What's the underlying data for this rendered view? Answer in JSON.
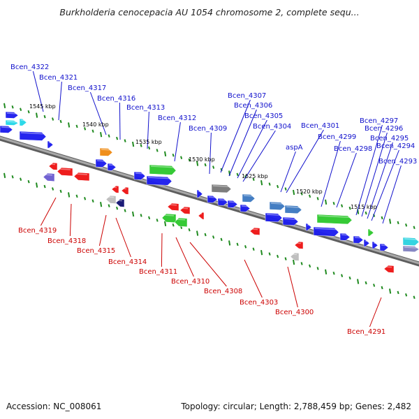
{
  "title": "Burkholderia cenocepacia AU 1054 chromosome 2, complete sequ...",
  "footer": {
    "accession": "Accession: NC_008061",
    "summary": "Topology: circular; Length: 2,788,459 bp; Genes: 2,482"
  },
  "colors": {
    "forward_label": "#1010cc",
    "reverse_label": "#cc0000",
    "backbone": "#8a8a8a",
    "tick": "#1f8a1f",
    "kbp_label": "#000000"
  },
  "scale_labels": [
    "1545 kbp",
    "1540 kbp",
    "1535 kbp",
    "1530 kbp",
    "1525 kbp",
    "1520 kbp",
    "1515 kbp"
  ],
  "forward_genes": [
    "Bcen_4322",
    "Bcen_4321",
    "Bcen_4317",
    "Bcen_4316",
    "Bcen_4313",
    "Bcen_4312",
    "Bcen_4309",
    "Bcen_4307",
    "Bcen_4306",
    "Bcen_4305",
    "Bcen_4304",
    "aspA",
    "Bcen_4301",
    "Bcen_4299",
    "Bcen_4298",
    "Bcen_4297",
    "Bcen_4296",
    "Bcen_4295",
    "Bcen_4294",
    "Bcen_4293"
  ],
  "reverse_genes": [
    "Bcen_4319",
    "Bcen_4318",
    "Bcen_4315",
    "Bcen_4314",
    "Bcen_4311",
    "Bcen_4310",
    "Bcen_4308",
    "Bcen_4303",
    "Bcen_4300",
    "Bcen_4291"
  ]
}
